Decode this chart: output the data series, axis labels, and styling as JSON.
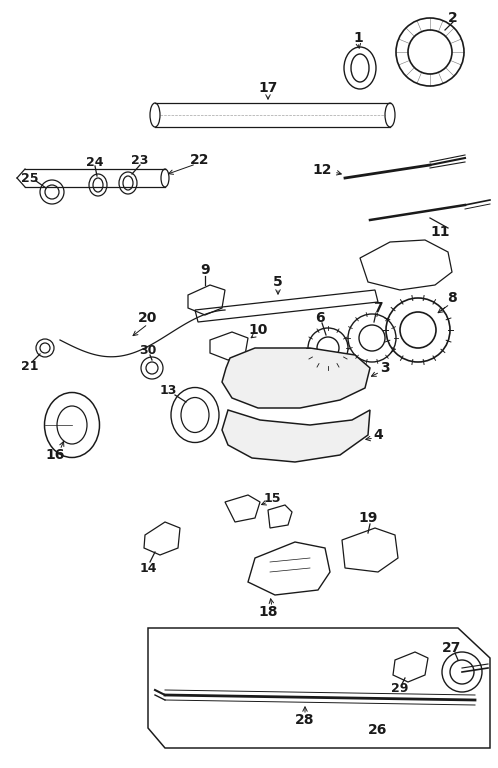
{
  "bg_color": "#ffffff",
  "line_color": "#1a1a1a",
  "fig_width": 4.98,
  "fig_height": 7.68,
  "dpi": 100,
  "label_fontsize": 10,
  "label_bold": true
}
